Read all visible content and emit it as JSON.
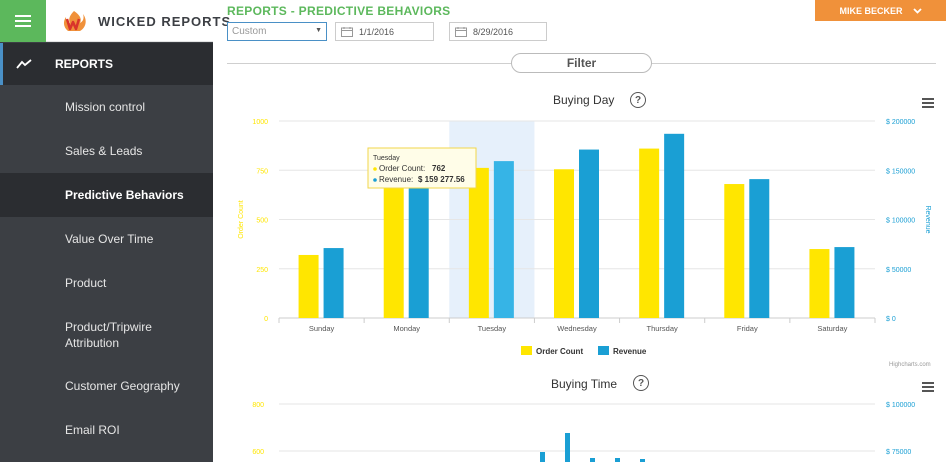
{
  "app": {
    "brand_name": "WICKED REPORTS",
    "page_title": "REPORTS - PREDICTIVE BEHAVIORS",
    "user_name": "MIKE BECKER",
    "colors": {
      "green": "#5cb85c",
      "orange": "#f0913a",
      "sidebar": "#3c3f44",
      "order_color": "#ffe600",
      "revenue_color": "#1a9fd4"
    }
  },
  "sidebar": {
    "section_label": "REPORTS",
    "section_icon": "trend-line-icon",
    "items": [
      {
        "label": "Mission control"
      },
      {
        "label": "Sales & Leads"
      },
      {
        "label": "Predictive Behaviors",
        "active": true
      },
      {
        "label": "Value Over Time"
      },
      {
        "label": "Product"
      },
      {
        "label": "Product/Tripwire Attribution"
      },
      {
        "label": "Customer Geography"
      },
      {
        "label": "Email ROI"
      }
    ]
  },
  "filters": {
    "range_value": "Custom",
    "start_date": "1/1/2016",
    "end_date": "8/29/2016",
    "filter_label": "Filter"
  },
  "chart_data": [
    {
      "type": "bar",
      "title": "Buying Day",
      "categories": [
        "Sunday",
        "Monday",
        "Tuesday",
        "Wednesday",
        "Thursday",
        "Friday",
        "Saturday"
      ],
      "series": [
        {
          "name": "Order Count",
          "axis": "left",
          "color": "#ffe600",
          "values": [
            320,
            770,
            762,
            755,
            860,
            680,
            350
          ]
        },
        {
          "name": "Revenue",
          "axis": "right",
          "color": "#1a9fd4",
          "values": [
            71000,
            171000,
            159277.56,
            171000,
            187000,
            141000,
            72000
          ]
        }
      ],
      "ylabel": "Order Count",
      "y2label": "Revenue",
      "ylim": [
        0,
        1000
      ],
      "y2lim": [
        0,
        200000
      ],
      "y_ticks": [
        "0",
        "250",
        "500",
        "750",
        "1000"
      ],
      "y2_ticks": [
        "$ 0",
        "$ 50000",
        "$ 100000",
        "$ 150000",
        "$ 200000"
      ],
      "legend_position": "bottom-center",
      "highlighted_category": "Tuesday",
      "tooltip": {
        "title": "Tuesday",
        "order_label": "Order Count:",
        "order_value": "762",
        "revenue_label": "Revenue:",
        "revenue_value": "$ 159 277.56"
      },
      "credit": "Highcharts.com"
    },
    {
      "type": "bar",
      "title": "Buying Time",
      "y_ticks": [
        "800",
        "600"
      ],
      "y2_ticks": [
        "$ 100000",
        "$ 75000"
      ]
    }
  ]
}
